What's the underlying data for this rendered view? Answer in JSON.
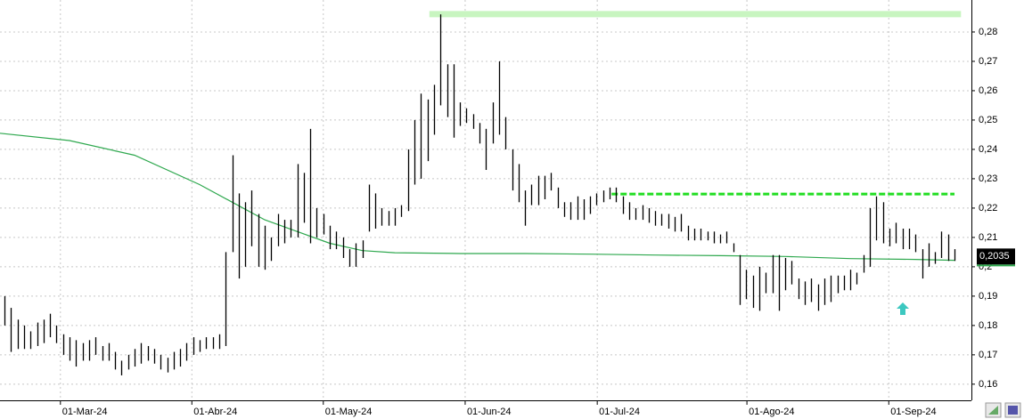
{
  "chart_data": {
    "type": "ohlc",
    "xlim": [
      -0.685,
      148.6
    ],
    "xticks": [
      {
        "value": 8.6,
        "label": "01-Mar-24"
      },
      {
        "value": 28.8,
        "label": "01-Abr-24"
      },
      {
        "value": 49.0,
        "label": "01-May-24"
      },
      {
        "value": 70.8,
        "label": "01-Jun-24"
      },
      {
        "value": 91.1,
        "label": "01-Jul-24"
      },
      {
        "value": 114.1,
        "label": "01-Ago-24"
      },
      {
        "value": 135.9,
        "label": "01-Sep-24"
      }
    ],
    "ylim": [
      0.1545,
      0.2909
    ],
    "yticks": [
      {
        "value": 0.16,
        "label": "0,16"
      },
      {
        "value": 0.17,
        "label": "0,17"
      },
      {
        "value": 0.18,
        "label": "0,18"
      },
      {
        "value": 0.19,
        "label": "0,19"
      },
      {
        "value": 0.2,
        "label": "0,2"
      },
      {
        "value": 0.21,
        "label": "0,21"
      },
      {
        "value": 0.22,
        "label": "0,22"
      },
      {
        "value": 0.23,
        "label": "0,23"
      },
      {
        "value": 0.24,
        "label": "0,24"
      },
      {
        "value": 0.25,
        "label": "0,25"
      },
      {
        "value": 0.26,
        "label": "0,26"
      },
      {
        "value": 0.27,
        "label": "0,27"
      },
      {
        "value": 0.28,
        "label": "0,28"
      }
    ],
    "grid": true,
    "color": "#000000",
    "high": [
      0.19,
      0.186,
      0.182,
      0.18,
      0.178,
      0.181,
      0.182,
      0.184,
      0.18,
      0.177,
      0.176,
      0.175,
      0.174,
      0.175,
      0.176,
      0.173,
      0.174,
      0.171,
      0.168,
      0.17,
      0.172,
      0.174,
      0.173,
      0.172,
      0.17,
      0.169,
      0.171,
      0.172,
      0.174,
      0.176,
      0.175,
      0.176,
      0.176,
      0.177,
      0.205,
      0.238,
      0.225,
      0.222,
      0.226,
      0.218,
      0.214,
      0.21,
      0.218,
      0.216,
      0.216,
      0.235,
      0.232,
      0.247,
      0.22,
      0.218,
      0.214,
      0.212,
      0.21,
      0.206,
      0.208,
      0.209,
      0.228,
      0.225,
      0.22,
      0.219,
      0.22,
      0.221,
      0.24,
      0.25,
      0.259,
      0.257,
      0.262,
      0.286,
      0.269,
      0.269,
      0.256,
      0.254,
      0.252,
      0.249,
      0.247,
      0.256,
      0.27,
      0.251,
      0.24,
      0.235,
      0.226,
      0.228,
      0.231,
      0.231,
      0.232,
      0.227,
      0.222,
      0.222,
      0.224,
      0.223,
      0.224,
      0.225,
      0.226,
      0.227,
      0.227,
      0.224,
      0.222,
      0.22,
      0.221,
      0.22,
      0.219,
      0.218,
      0.218,
      0.217,
      0.218,
      0.214,
      0.213,
      0.213,
      0.212,
      0.212,
      0.211,
      0.212,
      0.208,
      0.204,
      0.199,
      0.197,
      0.2,
      0.198,
      0.204,
      0.204,
      0.203,
      0.202,
      0.196,
      0.195,
      0.196,
      0.194,
      0.196,
      0.197,
      0.197,
      0.197,
      0.199,
      0.198,
      0.204,
      0.22,
      0.224,
      0.222,
      0.213,
      0.215,
      0.213,
      0.213,
      0.211,
      0.206,
      0.208,
      0.205,
      0.212,
      0.211,
      0.206
    ],
    "low": [
      0.18,
      0.171,
      0.172,
      0.172,
      0.172,
      0.173,
      0.174,
      0.176,
      0.174,
      0.17,
      0.168,
      0.166,
      0.168,
      0.168,
      0.17,
      0.168,
      0.168,
      0.165,
      0.163,
      0.165,
      0.166,
      0.167,
      0.168,
      0.167,
      0.165,
      0.164,
      0.165,
      0.166,
      0.168,
      0.17,
      0.171,
      0.172,
      0.172,
      0.172,
      0.173,
      0.205,
      0.196,
      0.2,
      0.207,
      0.2,
      0.199,
      0.202,
      0.207,
      0.208,
      0.21,
      0.21,
      0.215,
      0.208,
      0.21,
      0.211,
      0.206,
      0.206,
      0.203,
      0.2,
      0.2,
      0.203,
      0.212,
      0.213,
      0.214,
      0.214,
      0.214,
      0.217,
      0.219,
      0.228,
      0.23,
      0.236,
      0.245,
      0.255,
      0.251,
      0.244,
      0.248,
      0.249,
      0.247,
      0.242,
      0.233,
      0.242,
      0.245,
      0.24,
      0.226,
      0.222,
      0.214,
      0.221,
      0.221,
      0.223,
      0.226,
      0.22,
      0.217,
      0.216,
      0.216,
      0.216,
      0.218,
      0.221,
      0.222,
      0.223,
      0.222,
      0.218,
      0.216,
      0.216,
      0.216,
      0.215,
      0.214,
      0.214,
      0.213,
      0.212,
      0.212,
      0.209,
      0.209,
      0.209,
      0.209,
      0.208,
      0.208,
      0.208,
      0.205,
      0.187,
      0.189,
      0.186,
      0.185,
      0.191,
      0.191,
      0.185,
      0.192,
      0.194,
      0.189,
      0.187,
      0.188,
      0.185,
      0.187,
      0.188,
      0.191,
      0.192,
      0.192,
      0.194,
      0.198,
      0.2,
      0.209,
      0.208,
      0.207,
      0.208,
      0.206,
      0.206,
      0.205,
      0.196,
      0.2,
      0.201,
      0.203,
      0.202,
      0.202
    ],
    "moving_average": {
      "color": "#2ea84e",
      "x": [
        -0.685,
        10,
        20,
        30,
        35,
        40,
        45,
        50,
        55,
        60,
        70,
        80,
        90,
        100,
        110,
        120,
        130,
        140,
        146
      ],
      "values": [
        0.2455,
        0.243,
        0.238,
        0.228,
        0.222,
        0.216,
        0.212,
        0.208,
        0.2055,
        0.2048,
        0.2045,
        0.2045,
        0.2043,
        0.204,
        0.2038,
        0.2035,
        0.2028,
        0.2025,
        0.2022
      ]
    },
    "levels": [
      {
        "value": 0.2861,
        "x": [
          65.3,
          147.0
        ],
        "color": "#c8f5c0",
        "style": "solid"
      },
      {
        "value": 0.2248,
        "x": [
          93.3,
          146.0
        ],
        "color": "#22dd22",
        "style": "dashed"
      }
    ],
    "last_price": {
      "value": 0.2035,
      "label": "0,2035"
    }
  }
}
